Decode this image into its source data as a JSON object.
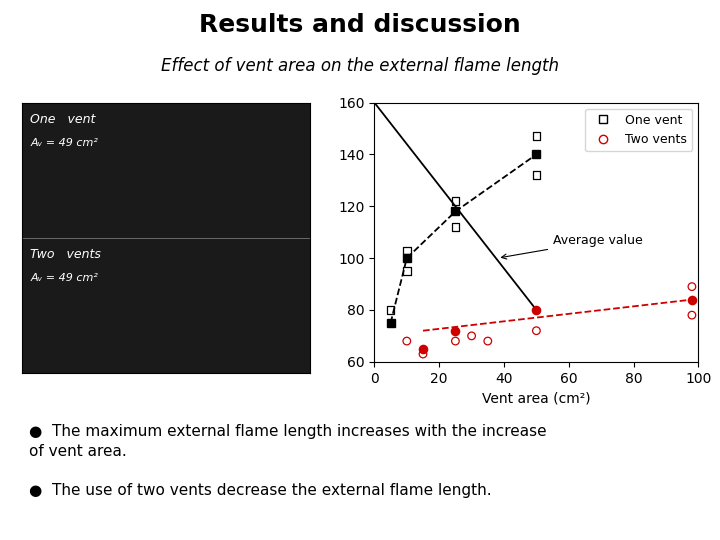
{
  "chart_data": {
    "type": "scatter",
    "title": "Results and discussion",
    "subtitle": "Effect of vent area on the external flame length",
    "xlabel": "Vent area (cm²)",
    "xlim": [
      0,
      100
    ],
    "ylim": [
      60,
      160
    ],
    "xticks": [
      0,
      20,
      40,
      60,
      80,
      100
    ],
    "yticks": [
      60,
      80,
      100,
      120,
      140,
      160
    ],
    "legend": "upper right",
    "series": [
      {
        "type": "line",
        "color": "#000000",
        "line_style": "solid",
        "x": [
          0,
          50
        ],
        "values": [
          160,
          80
        ]
      },
      {
        "type": "line",
        "color": "#000000",
        "line_style": "dashed",
        "marker": "square",
        "x": [
          5,
          10,
          25,
          50
        ],
        "values": [
          75,
          100,
          118,
          140
        ]
      },
      {
        "name": "One vent",
        "type": "scatter",
        "color": "#000000",
        "marker": "square-open",
        "x": [
          5,
          10,
          10,
          25,
          25,
          50,
          50
        ],
        "values": [
          80,
          95,
          103,
          112,
          122,
          132,
          147
        ]
      },
      {
        "type": "line",
        "color": "#cc0000",
        "line_style": "dashed",
        "x": [
          15,
          98
        ],
        "values": [
          72,
          84
        ]
      },
      {
        "type": "scatter",
        "color": "#cc0000",
        "marker": "circle",
        "x": [
          15,
          25,
          50,
          98
        ],
        "values": [
          65,
          72,
          80,
          84
        ]
      },
      {
        "name": "Two vents",
        "type": "scatter",
        "color": "#cc0000",
        "marker": "circle-open",
        "x": [
          10,
          15,
          25,
          30,
          35,
          50,
          98,
          98
        ],
        "values": [
          68,
          63,
          68,
          70,
          68,
          72,
          89,
          78
        ]
      }
    ],
    "annotations": [
      {
        "text": "Average value",
        "x": 38,
        "y": 100
      }
    ],
    "photo_color": "#1a1a1a",
    "photo_text_color": "#ffffff",
    "photo_labels": [
      "One   vent",
      "Aᵥ = 49 cm²",
      "Two   vents",
      "Aᵥ = 49 cm²"
    ],
    "bullets": [
      "●  The maximum external flame length increases with the increase\nof vent area.",
      "●  The use of two vents decrease the external flame length."
    ]
  }
}
